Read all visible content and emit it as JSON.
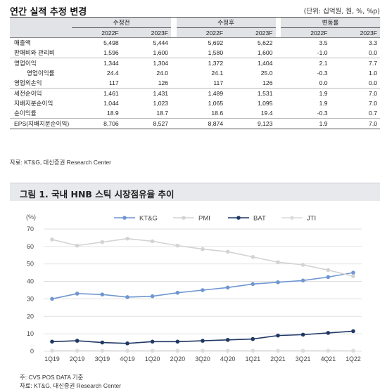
{
  "table": {
    "title": "연간 실적 추정 변경",
    "unit": "(단위: 십억원, 원, %, %p)",
    "group_headers": [
      "수정전",
      "수정후",
      "변동률"
    ],
    "year_headers": [
      "2022F",
      "2023F",
      "2022F",
      "2023F",
      "2022F",
      "2023F"
    ],
    "rows": [
      {
        "label": "매출액",
        "values": [
          "5,498",
          "5,444",
          "5,692",
          "5,622",
          "3.5",
          "3.3"
        ]
      },
      {
        "label": "판매비와 관리비",
        "values": [
          "1,596",
          "1,600",
          "1,580",
          "1,600",
          "-1.0",
          "0.0"
        ]
      },
      {
        "label": "영업이익",
        "values": [
          "1,344",
          "1,304",
          "1,372",
          "1,404",
          "2.1",
          "7.7"
        ]
      },
      {
        "label": "영업이익률",
        "values": [
          "24.4",
          "24.0",
          "24.1",
          "25.0",
          "-0.3",
          "1.0"
        ]
      },
      {
        "label": "영업외손익",
        "values": [
          "117",
          "126",
          "117",
          "126",
          "0.0",
          "0.0"
        ]
      },
      {
        "label": "세전순이익",
        "values": [
          "1,461",
          "1,431",
          "1,489",
          "1,531",
          "1.9",
          "7.0"
        ]
      },
      {
        "label": "지배지분순이익",
        "values": [
          "1,044",
          "1,023",
          "1,065",
          "1,095",
          "1.9",
          "7.0"
        ]
      },
      {
        "label": "순이익률",
        "values": [
          "18.9",
          "18.7",
          "18.6",
          "19.4",
          "-0.3",
          "0.7"
        ]
      },
      {
        "label": "EPS(지배지분순이익)",
        "values": [
          "8,706",
          "8,527",
          "8,874",
          "9,123",
          "1.9",
          "7.0"
        ]
      }
    ],
    "source": "자료: KT&G, 대신증권 Research Center"
  },
  "figure": {
    "title": "그림 1. 국내 HNB 스틱 시장점유율 추이",
    "note": "주: CVS POS DATA 기준",
    "source": "자료: KT&G, 대신증권 Research Center"
  },
  "chart_data": {
    "type": "line",
    "ylabel": "(%)",
    "ylim": [
      0,
      70
    ],
    "yticks": [
      "0",
      "10",
      "20",
      "30",
      "40",
      "50",
      "60",
      "70"
    ],
    "categories": [
      "1Q19",
      "2Q19",
      "3Q19",
      "4Q19",
      "1Q20",
      "2Q20",
      "3Q20",
      "4Q20",
      "1Q21",
      "2Q21",
      "3Q21",
      "4Q21",
      "1Q22"
    ],
    "legend_position": "top",
    "grid": "horizontal",
    "series": [
      {
        "name": "KT&G",
        "color": "#6f96d1",
        "marker": true,
        "values": [
          30.0,
          33.0,
          32.5,
          31.0,
          31.5,
          33.5,
          35.0,
          36.5,
          38.5,
          39.5,
          40.5,
          42.5,
          45.0
        ]
      },
      {
        "name": "PMI",
        "color": "#d3d3d3",
        "marker": true,
        "values": [
          64.0,
          60.5,
          62.5,
          64.5,
          63.0,
          60.5,
          58.5,
          57.0,
          54.0,
          51.0,
          49.5,
          46.5,
          43.0
        ]
      },
      {
        "name": "BAT",
        "color": "#1f3864",
        "marker": true,
        "values": [
          5.5,
          6.0,
          5.0,
          4.5,
          5.5,
          5.5,
          6.0,
          6.5,
          7.0,
          9.0,
          9.5,
          10.5,
          11.5
        ]
      },
      {
        "name": "JTI",
        "color": "#dcdcdc",
        "marker": true,
        "values": [
          0.3,
          0.3,
          0.3,
          0.3,
          0.3,
          0.3,
          0.3,
          0.3,
          0.3,
          0.3,
          0.3,
          0.3,
          0.3
        ]
      }
    ]
  }
}
